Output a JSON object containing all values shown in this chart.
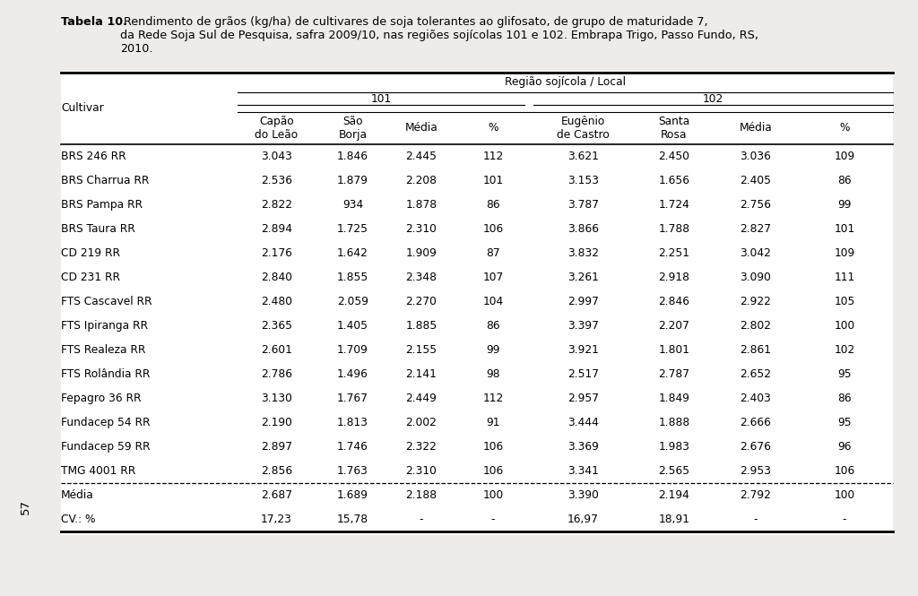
{
  "title_bold": "Tabela 10.",
  "title_rest": " Rendimento de grãos (kg/ha) de cultivares de soja tolerantes ao glifosato, de grupo de maturidade 7,\nda Rede Soja Sul de Pesquisa, safra 2009/10, nas regiões sojícolas 101 e 102. Embrapa Trigo, Passo Fundo, RS,\n2010.",
  "region_header": "Região sojícola / Local",
  "sub_header_101": "101",
  "sub_header_102": "102",
  "col_headers": [
    "Cultivar",
    "Capão\ndo Leão",
    "São\nBorja",
    "Média",
    "%",
    "Eugênio\nde Castro",
    "Santa\nRosa",
    "Média",
    "%"
  ],
  "rows": [
    [
      "BRS 246 RR",
      "3.043",
      "1.846",
      "2.445",
      "112",
      "3.621",
      "2.450",
      "3.036",
      "109"
    ],
    [
      "BRS Charrua RR",
      "2.536",
      "1.879",
      "2.208",
      "101",
      "3.153",
      "1.656",
      "2.405",
      "86"
    ],
    [
      "BRS Pampa RR",
      "2.822",
      "934",
      "1.878",
      "86",
      "3.787",
      "1.724",
      "2.756",
      "99"
    ],
    [
      "BRS Taura RR",
      "2.894",
      "1.725",
      "2.310",
      "106",
      "3.866",
      "1.788",
      "2.827",
      "101"
    ],
    [
      "CD 219 RR",
      "2.176",
      "1.642",
      "1.909",
      "87",
      "3.832",
      "2.251",
      "3.042",
      "109"
    ],
    [
      "CD 231 RR",
      "2.840",
      "1.855",
      "2.348",
      "107",
      "3.261",
      "2.918",
      "3.090",
      "111"
    ],
    [
      "FTS Cascavel RR",
      "2.480",
      "2.059",
      "2.270",
      "104",
      "2.997",
      "2.846",
      "2.922",
      "105"
    ],
    [
      "FTS Ipiranga RR",
      "2.365",
      "1.405",
      "1.885",
      "86",
      "3.397",
      "2.207",
      "2.802",
      "100"
    ],
    [
      "FTS Realeza RR",
      "2.601",
      "1.709",
      "2.155",
      "99",
      "3.921",
      "1.801",
      "2.861",
      "102"
    ],
    [
      "FTS Rolândia RR",
      "2.786",
      "1.496",
      "2.141",
      "98",
      "2.517",
      "2.787",
      "2.652",
      "95"
    ],
    [
      "Fepagro 36 RR",
      "3.130",
      "1.767",
      "2.449",
      "112",
      "2.957",
      "1.849",
      "2.403",
      "86"
    ],
    [
      "Fundacep 54 RR",
      "2.190",
      "1.813",
      "2.002",
      "91",
      "3.444",
      "1.888",
      "2.666",
      "95"
    ],
    [
      "Fundacep 59 RR",
      "2.897",
      "1.746",
      "2.322",
      "106",
      "3.369",
      "1.983",
      "2.676",
      "96"
    ],
    [
      "TMG 4001 RR",
      "2.856",
      "1.763",
      "2.310",
      "106",
      "3.341",
      "2.565",
      "2.953",
      "106"
    ]
  ],
  "summary_rows": [
    [
      "Média",
      "2.687",
      "1.689",
      "2.188",
      "100",
      "3.390",
      "2.194",
      "2.792",
      "100"
    ],
    [
      "CV.: %",
      "17,23",
      "15,78",
      "-",
      "-",
      "16,97",
      "18,91",
      "-",
      "-"
    ]
  ],
  "page_number": "57",
  "bg_color": "#eeece8",
  "table_bg": "#ffffff",
  "text_color": "#000000",
  "font_size_title": 9.2,
  "font_size_table": 8.8
}
